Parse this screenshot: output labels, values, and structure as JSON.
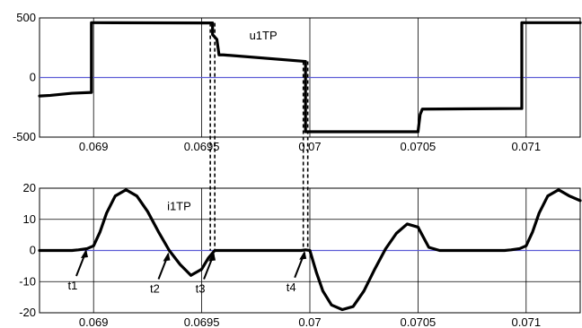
{
  "chart_data": [
    {
      "type": "line",
      "xlim": [
        0.06875,
        0.07125
      ],
      "ylim": [
        -500,
        500
      ],
      "xticks": [
        0.069,
        0.0695,
        0.07,
        0.0705,
        0.071
      ],
      "xtick_labels": [
        "0.069",
        "0.0695",
        "0.07",
        "0.0705",
        "0.071"
      ],
      "yticks": [
        -500,
        0,
        500
      ],
      "ytick_labels": [
        "-500",
        "0",
        "500"
      ],
      "grid": true,
      "zero_line_color": "#5b5bd6",
      "annotation": "u1TP",
      "annotation_at": [
        0.06972,
        320
      ],
      "series": [
        {
          "name": "",
          "color": "#000000",
          "x": [
            0.06875,
            0.0688,
            0.0689,
            0.06899,
            0.06899,
            0.069,
            0.0695,
            0.06955,
            0.06955,
            0.06957,
            0.06958,
            0.0696,
            0.06998,
            0.06998,
            0.07,
            0.0705,
            0.06999,
            0.0705,
            0.0705,
            0.07051,
            0.07052,
            0.07098,
            0.07098,
            0.07125
          ],
          "y": [
            -155,
            -150,
            -132,
            -125,
            460,
            460,
            458,
            458,
            360,
            320,
            190,
            190,
            135,
            -455,
            -455,
            -455,
            -455,
            -455,
            -455,
            -310,
            -265,
            -260,
            460,
            460
          ]
        }
      ]
    },
    {
      "type": "line",
      "xlim": [
        0.06875,
        0.07125
      ],
      "ylim": [
        -20,
        20
      ],
      "xticks": [
        0.069,
        0.0695,
        0.07,
        0.0705,
        0.071
      ],
      "xtick_labels": [
        "0.069",
        "0.0695",
        "0.07",
        "0.0705",
        "0.071"
      ],
      "yticks": [
        -20,
        -10,
        0,
        10,
        20
      ],
      "ytick_labels": [
        "-20",
        "-10",
        "0",
        "10",
        "20"
      ],
      "grid": true,
      "zero_line_color": "#5b5bd6",
      "annotation": "i1TP",
      "annotation_at": [
        0.06934,
        13
      ],
      "series": [
        {
          "name": "",
          "color": "#000000",
          "x": [
            0.06875,
            0.0688,
            0.06885,
            0.0689,
            0.06893,
            0.06897,
            0.069,
            0.06903,
            0.06906,
            0.0691,
            0.06915,
            0.0692,
            0.06925,
            0.0693,
            0.06935,
            0.0694,
            0.06945,
            0.0695,
            0.06953,
            0.06956,
            0.0696,
            0.0697,
            0.0698,
            0.06996,
            0.06998,
            0.07,
            0.07003,
            0.07006,
            0.0701,
            0.07015,
            0.0702,
            0.07025,
            0.0703,
            0.07035,
            0.0704,
            0.07045,
            0.0705,
            0.07055,
            0.0706,
            0.0707,
            0.0708,
            0.0709,
            0.07093,
            0.07097,
            0.071,
            0.07103,
            0.07106,
            0.0711,
            0.07115,
            0.0712,
            0.07125
          ],
          "y": [
            0,
            0,
            0,
            0,
            0.2,
            0.6,
            1.5,
            6,
            12,
            17.5,
            19.5,
            17.5,
            12.5,
            6,
            0,
            -4.5,
            -8,
            -6,
            -2.5,
            0,
            0,
            0,
            0,
            0,
            0.2,
            0,
            -7,
            -13,
            -17.5,
            -19,
            -18,
            -13,
            -6,
            0.5,
            5.5,
            8.5,
            7.5,
            1,
            0,
            0,
            0,
            0,
            0.2,
            0.6,
            1.5,
            6,
            12,
            17.5,
            19.5,
            17.5,
            16
          ]
        }
      ]
    }
  ],
  "dashed_links": [
    {
      "x": 0.06955,
      "from_y_top": 458,
      "to_y_bottom": 0
    },
    {
      "x": 0.06998,
      "from_y_top": 135,
      "to_y_bottom": 0.2
    }
  ],
  "markers": [
    {
      "label": "t1",
      "x": 0.06897,
      "y": 1
    },
    {
      "label": "t2",
      "x": 0.06935,
      "y": 0
    },
    {
      "label": "t3",
      "x": 0.06956,
      "y": 0
    },
    {
      "label": "t4",
      "x": 0.06998,
      "y": 0.5
    }
  ]
}
